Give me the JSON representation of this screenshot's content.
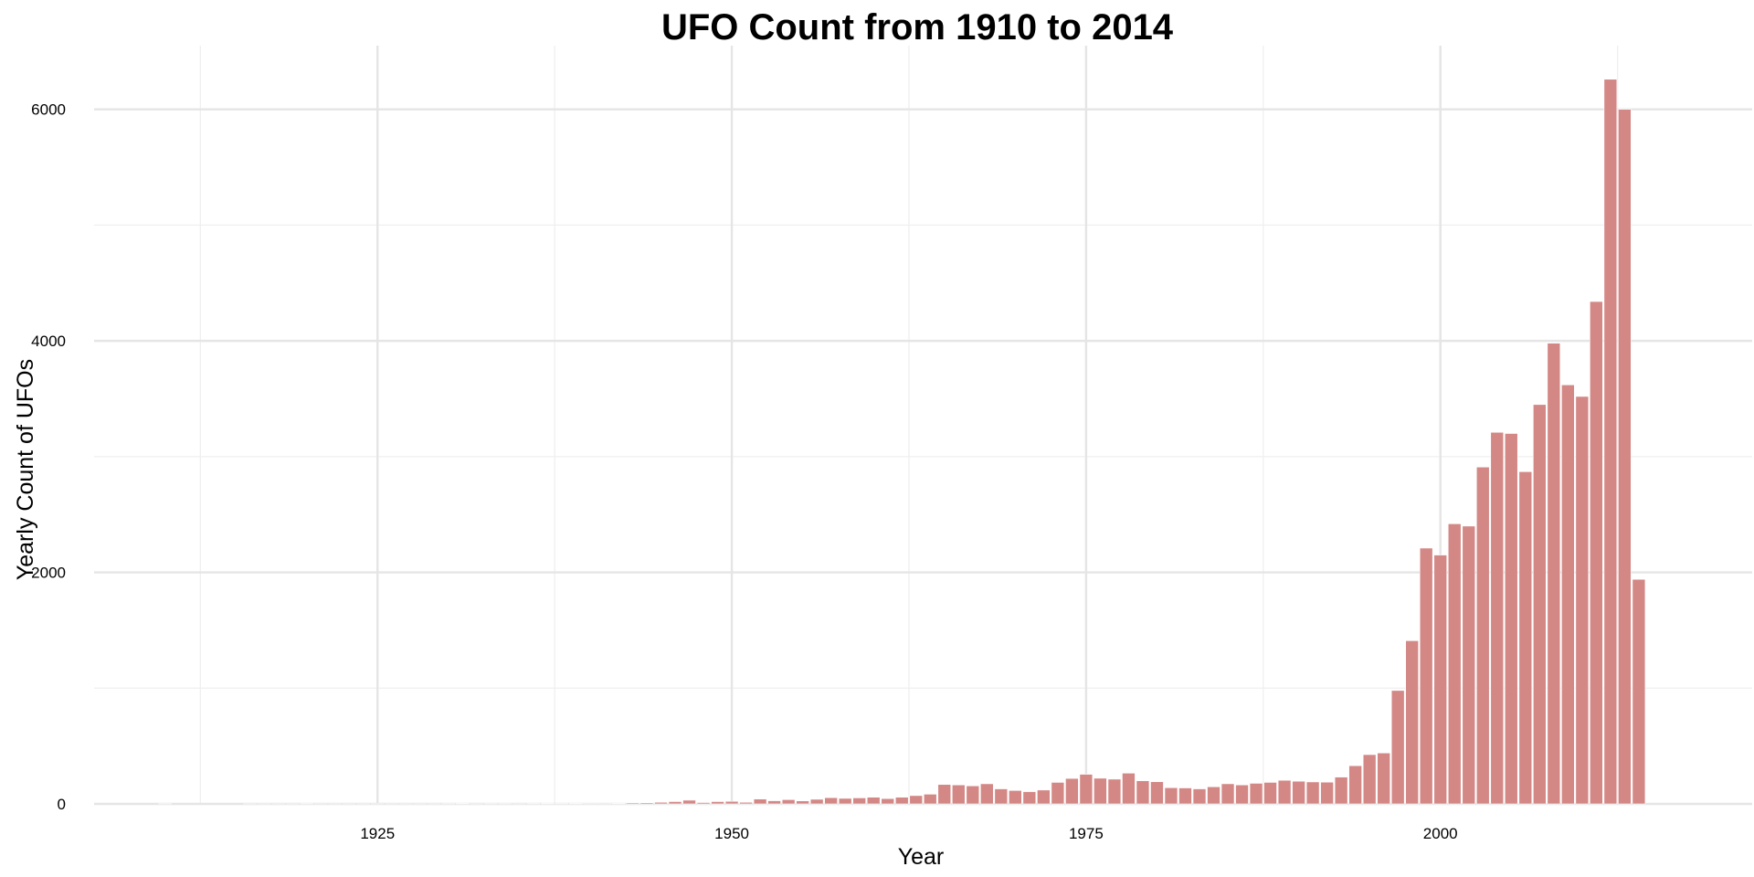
{
  "chart_data": {
    "type": "bar",
    "title": "UFO Count from 1910 to 2014",
    "xlabel": "Year",
    "ylabel": "Yearly Count of UFOs",
    "xlim": [
      1905,
      2022
    ],
    "ylim": [
      0,
      6550
    ],
    "x_ticks": [
      1925,
      1950,
      1975,
      2000
    ],
    "y_ticks": [
      0,
      2000,
      4000,
      6000
    ],
    "grid": true,
    "legend": "none",
    "bar_color": "#d38886",
    "x": [
      1910,
      1911,
      1912,
      1913,
      1914,
      1915,
      1916,
      1917,
      1918,
      1919,
      1920,
      1921,
      1922,
      1923,
      1924,
      1925,
      1926,
      1927,
      1928,
      1929,
      1930,
      1931,
      1932,
      1933,
      1934,
      1935,
      1936,
      1937,
      1938,
      1939,
      1940,
      1941,
      1942,
      1943,
      1944,
      1945,
      1946,
      1947,
      1948,
      1949,
      1950,
      1951,
      1952,
      1953,
      1954,
      1955,
      1956,
      1957,
      1958,
      1959,
      1960,
      1961,
      1962,
      1963,
      1964,
      1965,
      1966,
      1967,
      1968,
      1969,
      1970,
      1971,
      1972,
      1973,
      1974,
      1975,
      1976,
      1977,
      1978,
      1979,
      1980,
      1981,
      1982,
      1983,
      1984,
      1985,
      1986,
      1987,
      1988,
      1989,
      1990,
      1991,
      1992,
      1993,
      1994,
      1995,
      1996,
      1997,
      1998,
      1999,
      2000,
      2001,
      2002,
      2003,
      2004,
      2005,
      2006,
      2007,
      2008,
      2009,
      2010,
      2011,
      2012,
      2013,
      2014
    ],
    "values": [
      2,
      0,
      0,
      0,
      0,
      0,
      1,
      1,
      1,
      1,
      3,
      1,
      1,
      1,
      1,
      1,
      1,
      1,
      1,
      1,
      2,
      4,
      1,
      2,
      2,
      1,
      3,
      4,
      3,
      5,
      6,
      6,
      5,
      9,
      10,
      14,
      20,
      32,
      12,
      20,
      22,
      14,
      42,
      27,
      37,
      26,
      40,
      54,
      48,
      52,
      58,
      46,
      58,
      72,
      84,
      168,
      164,
      156,
      174,
      130,
      116,
      106,
      120,
      186,
      220,
      256,
      222,
      214,
      266,
      200,
      192,
      140,
      138,
      130,
      148,
      174,
      164,
      178,
      186,
      204,
      196,
      190,
      188,
      232,
      330,
      426,
      440,
      980,
      1410,
      2210,
      2150,
      2420,
      2400,
      2910,
      3210,
      3200,
      2870,
      3450,
      3980,
      3620,
      3520,
      4340,
      6260,
      6000,
      1940
    ]
  }
}
